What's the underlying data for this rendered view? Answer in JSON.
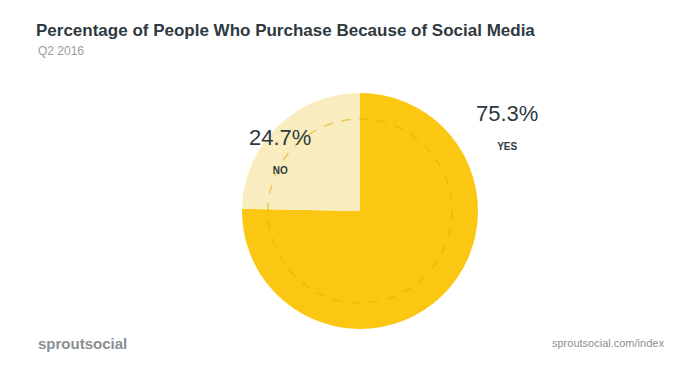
{
  "chart_data": {
    "type": "pie",
    "title": "Percentage of People Who Purchase Because of Social Media",
    "subtitle": "Q2 2016",
    "categories": [
      "YES",
      "NO"
    ],
    "values": [
      75.3,
      24.7
    ],
    "value_labels": [
      "75.3%",
      "24.7%"
    ],
    "data_labels": true,
    "colors": [
      "#fcc713",
      "#f9edc0"
    ],
    "annotations": [
      "sproutsocial",
      "sproutsocial.com/index"
    ]
  }
}
